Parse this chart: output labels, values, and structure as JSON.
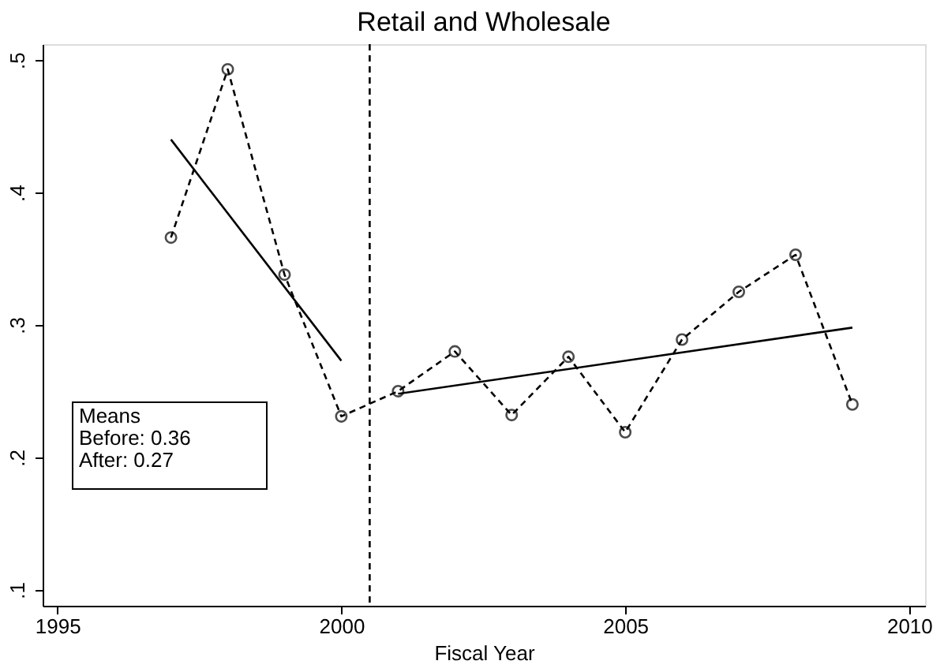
{
  "chart_data": {
    "type": "line",
    "title": "Retail and Wholesale",
    "xlabel": "Fiscal Year",
    "x": [
      1997,
      1998,
      1999,
      2000,
      2001,
      2002,
      2003,
      2004,
      2005,
      2006,
      2007,
      2008,
      2009
    ],
    "series": [
      {
        "color": "#000000",
        "line_style": "dashed",
        "marker": "circle",
        "values": [
          0.366,
          0.493,
          0.338,
          0.231,
          0.25,
          0.28,
          0.232,
          0.276,
          0.219,
          0.289,
          0.325,
          0.353,
          0.24
        ]
      },
      {
        "color": "#000000",
        "line_style": "solid",
        "marker": "none",
        "x": [
          1997,
          2000
        ],
        "values": [
          0.44,
          0.273
        ]
      },
      {
        "color": "#000000",
        "line_style": "solid",
        "marker": "none",
        "x": [
          2001,
          2009
        ],
        "values": [
          0.248,
          0.298
        ]
      }
    ],
    "xlim": [
      1994.74,
      2010.28
    ],
    "xticks": [
      1995,
      2000,
      2005,
      2010
    ],
    "ylim": [
      0.088,
      0.512
    ],
    "yticks": [
      {
        "value": 0.1,
        "label": ".1"
      },
      {
        "value": 0.2,
        "label": ".2"
      },
      {
        "value": 0.3,
        "label": ".3"
      },
      {
        "value": 0.4,
        "label": ".4"
      },
      {
        "value": 0.5,
        "label": ".5"
      }
    ],
    "ref_lines": [
      {
        "axis": "x",
        "value": 2000.5,
        "line_style": "dashed",
        "color": "#000000"
      }
    ],
    "annotations": [
      "Means\nBefore: 0.36\nAfter:   0.27"
    ],
    "grid": false
  }
}
